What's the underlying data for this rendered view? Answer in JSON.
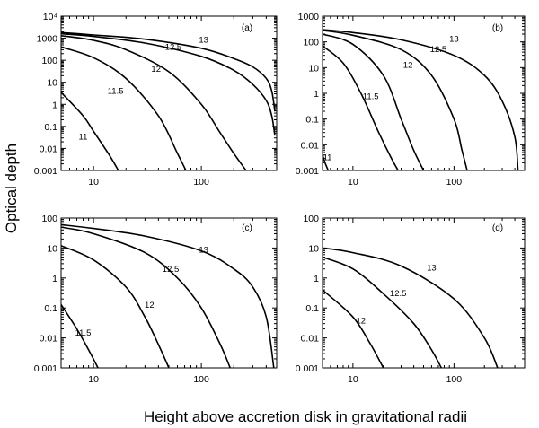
{
  "figure": {
    "ylabel": "Optical depth",
    "xlabel": "Height above accretion disk in gravitational radii"
  },
  "chart_data": [
    {
      "type": "line",
      "panel": "(a)",
      "xscale": "log",
      "yscale": "log",
      "xlim": [
        5,
        500
      ],
      "ylim": [
        0.001,
        10000
      ],
      "x_ticks": [
        "10",
        "100"
      ],
      "y_ticks": [
        "0.001",
        "0.01",
        "0.1",
        "1",
        "10",
        "100",
        "1000",
        "10⁴"
      ],
      "series": [
        {
          "name": "13",
          "x": [
            5,
            10,
            30,
            100,
            200,
            300,
            400,
            450,
            480
          ],
          "y": [
            1800,
            1400,
            900,
            350,
            120,
            50,
            15,
            4,
            0.5
          ]
        },
        {
          "name": "12.5",
          "x": [
            5,
            10,
            30,
            100,
            200,
            300,
            400,
            450,
            480
          ],
          "y": [
            1600,
            1200,
            600,
            150,
            35,
            8,
            1.5,
            0.3,
            0.04
          ]
        },
        {
          "name": "12",
          "x": [
            5,
            10,
            20,
            50,
            100,
            150,
            200,
            260
          ],
          "y": [
            1300,
            800,
            300,
            30,
            1,
            0.05,
            0.006,
            0.001
          ]
        },
        {
          "name": "11.5",
          "x": [
            5,
            10,
            20,
            40,
            60,
            72
          ],
          "y": [
            400,
            130,
            15,
            0.3,
            0.006,
            0.001
          ]
        },
        {
          "name": "11",
          "x": [
            5,
            8,
            10,
            14,
            17
          ],
          "y": [
            3.5,
            0.3,
            0.06,
            0.005,
            0.001
          ]
        }
      ],
      "curve_labels": [
        {
          "text": "13",
          "x": 105,
          "y": 620
        },
        {
          "text": "12.5",
          "x": 55,
          "y": 300
        },
        {
          "text": "12",
          "x": 38,
          "y": 30
        },
        {
          "text": "11.5",
          "x": 16,
          "y": 3
        },
        {
          "text": "11",
          "x": 8,
          "y": 0.025
        }
      ]
    },
    {
      "type": "line",
      "panel": "(b)",
      "xscale": "log",
      "yscale": "log",
      "xlim": [
        5,
        500
      ],
      "ylim": [
        0.001,
        1000
      ],
      "x_ticks": [
        "10",
        "100"
      ],
      "y_ticks": [
        "0.001",
        "0.01",
        "0.1",
        "1",
        "10",
        "100",
        "1000"
      ],
      "series": [
        {
          "name": "13",
          "x": [
            5,
            10,
            30,
            100,
            200,
            300,
            400,
            430
          ],
          "y": [
            300,
            230,
            120,
            30,
            5,
            0.5,
            0.02,
            0.001
          ]
        },
        {
          "name": "12.5",
          "x": [
            5,
            10,
            30,
            60,
            100,
            120,
            135
          ],
          "y": [
            280,
            180,
            50,
            5,
            0.1,
            0.006,
            0.001
          ]
        },
        {
          "name": "12",
          "x": [
            5,
            10,
            20,
            30,
            40,
            50
          ],
          "y": [
            200,
            80,
            5,
            0.1,
            0.006,
            0.001
          ]
        },
        {
          "name": "11.5",
          "x": [
            5,
            8,
            12,
            18,
            24,
            28
          ],
          "y": [
            70,
            15,
            1,
            0.03,
            0.003,
            0.001
          ]
        },
        {
          "name": "11",
          "x": [
            5,
            5.3,
            5.7
          ],
          "y": [
            0.004,
            0.002,
            0.001
          ]
        }
      ],
      "curve_labels": [
        {
          "text": "13",
          "x": 100,
          "y": 100
        },
        {
          "text": "12.5",
          "x": 70,
          "y": 40
        },
        {
          "text": "12",
          "x": 35,
          "y": 10
        },
        {
          "text": "11.5",
          "x": 15,
          "y": 0.6
        },
        {
          "text": "11",
          "x": 5.6,
          "y": 0.0025
        }
      ]
    },
    {
      "type": "line",
      "panel": "(c)",
      "xscale": "log",
      "yscale": "log",
      "xlim": [
        5,
        500
      ],
      "ylim": [
        0.001,
        100
      ],
      "x_ticks": [
        "10",
        "100"
      ],
      "y_ticks": [
        "0.001",
        "0.01",
        "0.1",
        "1",
        "10",
        "100"
      ],
      "series": [
        {
          "name": "13",
          "x": [
            5,
            10,
            30,
            100,
            200,
            300,
            400,
            470
          ],
          "y": [
            60,
            45,
            25,
            8,
            2,
            0.5,
            0.05,
            0.001
          ]
        },
        {
          "name": "12.5",
          "x": [
            5,
            10,
            30,
            60,
            100,
            150,
            185
          ],
          "y": [
            50,
            30,
            7,
            1,
            0.1,
            0.006,
            0.001
          ]
        },
        {
          "name": "12",
          "x": [
            5,
            10,
            20,
            30,
            40,
            50
          ],
          "y": [
            12,
            4,
            0.5,
            0.05,
            0.006,
            0.001
          ]
        },
        {
          "name": "11.5",
          "x": [
            5,
            7,
            9,
            11
          ],
          "y": [
            0.13,
            0.02,
            0.004,
            0.001
          ]
        }
      ],
      "curve_labels": [
        {
          "text": "13",
          "x": 105,
          "y": 7
        },
        {
          "text": "12.5",
          "x": 52,
          "y": 1.6
        },
        {
          "text": "12",
          "x": 33,
          "y": 0.1
        },
        {
          "text": "11.5",
          "x": 8,
          "y": 0.012
        }
      ]
    },
    {
      "type": "line",
      "panel": "(d)",
      "xscale": "log",
      "yscale": "log",
      "xlim": [
        5,
        500
      ],
      "ylim": [
        0.001,
        100
      ],
      "x_ticks": [
        "10",
        "100"
      ],
      "y_ticks": [
        "0.001",
        "0.01",
        "0.1",
        "1",
        "10",
        "100"
      ],
      "series": [
        {
          "name": "13",
          "x": [
            5,
            10,
            30,
            100,
            200,
            270
          ],
          "y": [
            10,
            7,
            2.5,
            0.2,
            0.01,
            0.001
          ]
        },
        {
          "name": "12.5",
          "x": [
            5,
            10,
            20,
            40,
            60,
            75
          ],
          "y": [
            5,
            2,
            0.3,
            0.03,
            0.004,
            0.001
          ]
        },
        {
          "name": "12",
          "x": [
            5,
            10,
            15,
            20
          ],
          "y": [
            0.4,
            0.05,
            0.006,
            0.001
          ]
        }
      ],
      "curve_labels": [
        {
          "text": "13",
          "x": 60,
          "y": 1.8
        },
        {
          "text": "12.5",
          "x": 28,
          "y": 0.25
        },
        {
          "text": "12",
          "x": 12,
          "y": 0.03
        }
      ]
    }
  ]
}
